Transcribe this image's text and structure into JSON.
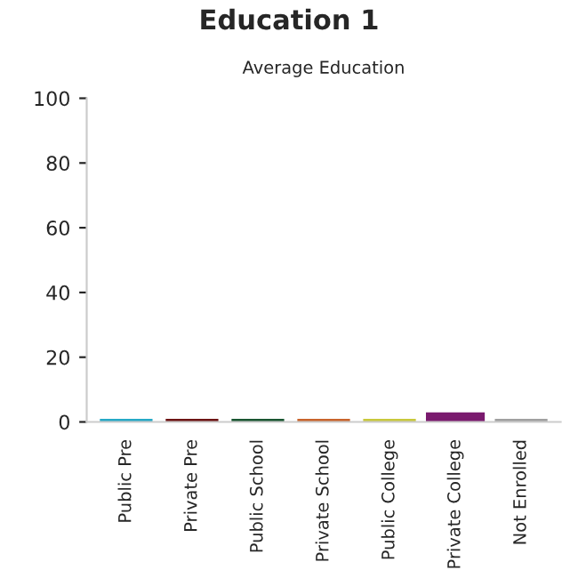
{
  "chart_data": {
    "type": "bar",
    "title": "Education 1",
    "subtitle": "Average Education",
    "categories": [
      "Public Pre",
      "Private Pre",
      "Public School",
      "Private School",
      "Public College",
      "Private College",
      "Not Enrolled"
    ],
    "values": [
      0,
      0,
      0,
      0,
      0,
      2,
      0
    ],
    "colors": [
      "#27a9c6",
      "#6d1414",
      "#1a5632",
      "#c8642c",
      "#c8c83c",
      "#7a1a6e",
      "#a0a0a0"
    ],
    "ylim": [
      0,
      100
    ],
    "yticks": [
      0,
      20,
      40,
      60,
      80,
      100
    ],
    "grid": false,
    "legend": false
  }
}
